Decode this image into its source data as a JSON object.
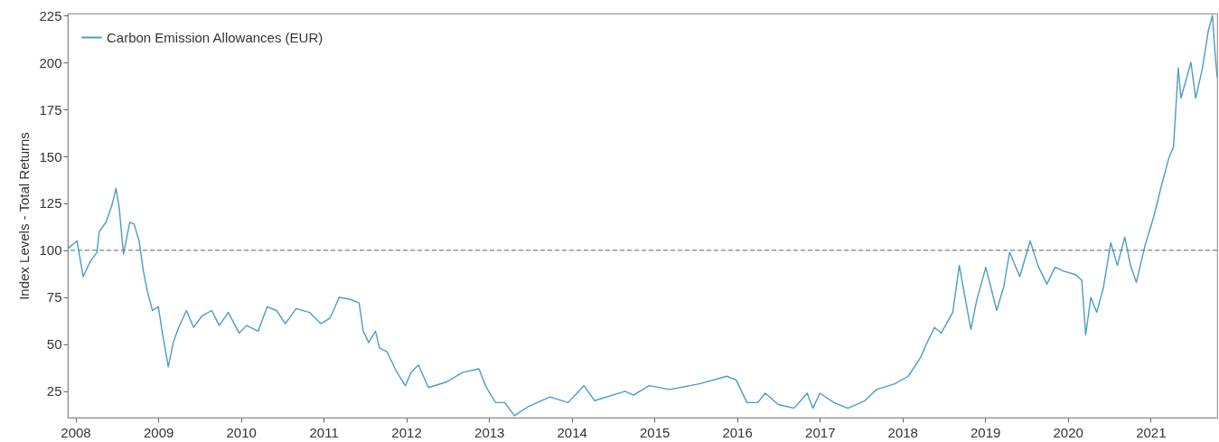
{
  "chart_data": {
    "type": "line",
    "ylabel": "Index Levels - Total Returns",
    "x": [
      "2007-11-28",
      "2008-01-08",
      "2008-02-04",
      "2008-03-06",
      "2008-04-05",
      "2008-04-15",
      "2008-05-15",
      "2008-06-10",
      "2008-06-28",
      "2008-07-12",
      "2008-07-31",
      "2008-08-28",
      "2008-09-16",
      "2008-10-08",
      "2008-10-27",
      "2008-11-14",
      "2008-12-06",
      "2009-01-01",
      "2009-01-19",
      "2009-02-14",
      "2009-03-08",
      "2009-04-01",
      "2009-05-05",
      "2009-06-06",
      "2009-07-12",
      "2009-08-25",
      "2009-09-27",
      "2009-11-06",
      "2009-12-24",
      "2010-01-26",
      "2010-03-18",
      "2010-04-27",
      "2010-06-07",
      "2010-07-16",
      "2010-09-02",
      "2010-10-30",
      "2010-12-20",
      "2011-01-30",
      "2011-03-11",
      "2011-04-27",
      "2011-06-07",
      "2011-06-25",
      "2011-07-19",
      "2011-08-18",
      "2011-09-05",
      "2011-10-08",
      "2011-11-17",
      "2011-12-28",
      "2012-01-22",
      "2012-02-24",
      "2012-04-08",
      "2012-06-28",
      "2012-09-05",
      "2012-11-17",
      "2012-12-20",
      "2013-01-30",
      "2013-03-11",
      "2013-04-23",
      "2013-06-25",
      "2013-09-27",
      "2013-12-16",
      "2014-02-24",
      "2014-04-12",
      "2014-08-25",
      "2014-10-01",
      "2014-12-09",
      "2015-03-11",
      "2015-07-19",
      "2015-11-17",
      "2015-12-28",
      "2016-02-14",
      "2016-04-01",
      "2016-05-05",
      "2016-07-01",
      "2016-09-09",
      "2016-11-06",
      "2016-12-01",
      "2017-01-01",
      "2017-03-04",
      "2017-05-05",
      "2017-07-19",
      "2017-09-09",
      "2017-11-28",
      "2018-01-26",
      "2018-03-22",
      "2018-04-12",
      "2018-05-22",
      "2018-06-21",
      "2018-08-11",
      "2018-09-09",
      "2018-10-04",
      "2018-10-30",
      "2018-11-24",
      "2019-01-04",
      "2019-02-21",
      "2019-03-25",
      "2019-04-19",
      "2019-06-03",
      "2019-07-19",
      "2019-08-22",
      "2019-10-01",
      "2019-11-06",
      "2019-12-13",
      "2020-02-06",
      "2020-03-03",
      "2020-03-20",
      "2020-04-12",
      "2020-05-08",
      "2020-06-06",
      "2020-07-09",
      "2020-08-07",
      "2020-09-09",
      "2020-10-04",
      "2020-10-30",
      "2020-12-06",
      "2021-01-15",
      "2021-02-17",
      "2021-03-22",
      "2021-04-12",
      "2021-05-03",
      "2021-05-15",
      "2021-06-28",
      "2021-07-19",
      "2021-08-18",
      "2021-09-13",
      "2021-10-01",
      "2021-10-12",
      "2021-10-22"
    ],
    "series": [
      {
        "name": "Carbon Emission Allowances (EUR)",
        "color": "#4a9cc8",
        "values": [
          101,
          105,
          86,
          94,
          99,
          110,
          115,
          124,
          133,
          123,
          98,
          115,
          114,
          105,
          89,
          78,
          68,
          70,
          56,
          38,
          51,
          59,
          68,
          59,
          65,
          68,
          60,
          67,
          56,
          60,
          57,
          70,
          68,
          61,
          69,
          67,
          61,
          64,
          75,
          74,
          72,
          57,
          51,
          57,
          48,
          46,
          36,
          28,
          35,
          39,
          27,
          30,
          35,
          37,
          27,
          19,
          19,
          12,
          17,
          22,
          19,
          28,
          20,
          25,
          23,
          28,
          26,
          29,
          33,
          31,
          19,
          19,
          24,
          18,
          16,
          24,
          16,
          24,
          19,
          16,
          20,
          26,
          29,
          33,
          43,
          49,
          59,
          56,
          67,
          92,
          75,
          58,
          73,
          91,
          68,
          81,
          99,
          86,
          105,
          92,
          82,
          91,
          89,
          87,
          84,
          55,
          75,
          67,
          80,
          104,
          92,
          107,
          92,
          83,
          102,
          118,
          134,
          149,
          155,
          197,
          181,
          200,
          181,
          197,
          217,
          225,
          206,
          192
        ]
      }
    ],
    "xlim": [
      "2007-11-28",
      "2021-10-22"
    ],
    "ylim": [
      11,
      226
    ],
    "xticks": [
      "2008",
      "2009",
      "2010",
      "2011",
      "2012",
      "2013",
      "2014",
      "2015",
      "2016",
      "2017",
      "2018",
      "2019",
      "2020",
      "2021"
    ],
    "yticks": [
      25,
      50,
      75,
      100,
      125,
      150,
      175,
      200,
      225
    ],
    "ref_lines": [
      {
        "axis": "y",
        "value": 100,
        "color": "#808080",
        "line_style": "dashed"
      }
    ],
    "legend": "top left"
  }
}
